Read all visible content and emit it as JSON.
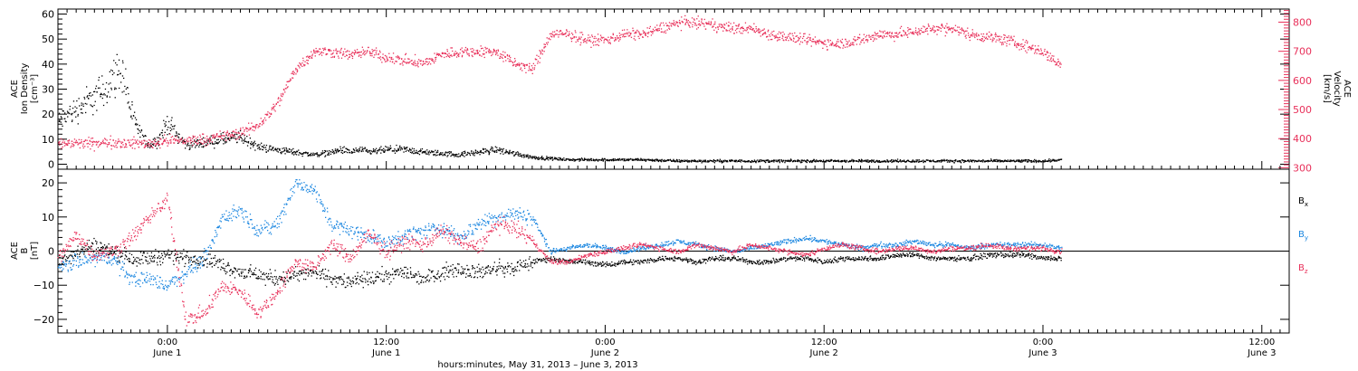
{
  "chart_data": [
    {
      "type": "scatter",
      "panel": "top",
      "left_axis": {
        "label_lines": [
          "ACE",
          "Ion Density",
          "[cm⁻³]"
        ],
        "ylim": [
          -2,
          62
        ],
        "ticks": [
          0,
          10,
          20,
          30,
          40,
          50,
          60
        ],
        "tick_labels": [
          "0",
          "10",
          "20",
          "30",
          "40",
          "50",
          "60"
        ]
      },
      "right_axis": {
        "label_lines": [
          "ACE",
          "Velocity",
          "[km/s]"
        ],
        "ylim": [
          295,
          845
        ],
        "ticks": [
          300,
          400,
          500,
          600,
          700,
          800
        ],
        "tick_labels": [
          "300",
          "400",
          "500",
          "600",
          "700",
          "800"
        ],
        "color": "#e8305a"
      },
      "series": [
        {
          "axis": "left",
          "color": "#000000",
          "x_hours": [
            0,
            1,
            2,
            3,
            4,
            5,
            6,
            7,
            8,
            9,
            10,
            11,
            12,
            13,
            14,
            16,
            18,
            20,
            22,
            24,
            26,
            28,
            30,
            31,
            32,
            33,
            34,
            36,
            38,
            40,
            44,
            48,
            52,
            56,
            60,
            64,
            68,
            72,
            76,
            80,
            84,
            88,
            92,
            96,
            100,
            104,
            108,
            110
          ],
          "values": [
            17,
            20,
            22,
            25,
            27,
            30,
            35,
            38,
            20,
            12,
            8,
            10,
            17,
            12,
            8,
            9,
            10,
            11,
            7,
            6,
            5,
            4,
            5,
            6,
            5,
            6,
            5,
            6,
            6,
            5,
            4,
            6,
            3,
            2,
            2,
            2,
            1.5,
            1.5,
            1.5,
            1.5,
            1.5,
            1.5,
            1.5,
            1.5,
            1.5,
            1.5,
            1.5,
            2
          ]
        },
        {
          "axis": "right",
          "color": "#e8305a",
          "x_hours": [
            0,
            2,
            4,
            6,
            8,
            10,
            12,
            14,
            16,
            18,
            20,
            22,
            24,
            26,
            28,
            30,
            32,
            34,
            36,
            38,
            40,
            42,
            44,
            46,
            48,
            50,
            52,
            54,
            56,
            58,
            60,
            62,
            64,
            66,
            68,
            70,
            72,
            74,
            76,
            78,
            80,
            82,
            84,
            86,
            88,
            90,
            92,
            94,
            96,
            98,
            100,
            102,
            104,
            106,
            108,
            110
          ],
          "values": [
            385,
            385,
            385,
            390,
            385,
            385,
            395,
            395,
            400,
            410,
            420,
            450,
            520,
            640,
            700,
            700,
            690,
            700,
            680,
            670,
            660,
            690,
            700,
            700,
            700,
            660,
            640,
            760,
            760,
            740,
            740,
            760,
            760,
            780,
            800,
            800,
            790,
            780,
            780,
            760,
            750,
            740,
            730,
            730,
            740,
            760,
            760,
            770,
            780,
            780,
            760,
            750,
            740,
            720,
            700,
            650
          ]
        }
      ]
    },
    {
      "type": "scatter",
      "panel": "bottom",
      "left_axis": {
        "label_lines": [
          "ACE",
          "B",
          "[nT]"
        ],
        "ylim": [
          -24,
          24
        ],
        "ticks": [
          -20,
          -10,
          0,
          10,
          20
        ],
        "tick_labels": [
          "−20",
          "−10",
          "0",
          "10",
          "20"
        ]
      },
      "x_axis": {
        "xlim_hours": [
          0,
          135
        ],
        "major_ticks_hours": [
          12,
          36,
          60,
          84,
          108,
          132
        ],
        "minor_tick_step_hours": 1,
        "tick_labels": [
          {
            "time": "0:00",
            "day": "June 1"
          },
          {
            "time": "12:00",
            "day": "June 1"
          },
          {
            "time": "0:00",
            "day": "June 2"
          },
          {
            "time": "12:00",
            "day": "June 2"
          },
          {
            "time": "0:00",
            "day": "June 3"
          },
          {
            "time": "12:00",
            "day": "June 3"
          }
        ],
        "label": "hours:minutes, May 31, 2013 – June  3, 2013"
      },
      "zero_line": 0,
      "series": [
        {
          "name": "Bx",
          "label_main": "B",
          "label_sub": "x",
          "color": "#000000",
          "x_hours": [
            0,
            2,
            4,
            6,
            8,
            10,
            12,
            14,
            16,
            18,
            20,
            22,
            24,
            26,
            28,
            30,
            32,
            34,
            36,
            38,
            40,
            42,
            44,
            46,
            48,
            50,
            52,
            54,
            56,
            58,
            60,
            62,
            64,
            66,
            68,
            70,
            72,
            74,
            76,
            78,
            80,
            82,
            84,
            86,
            88,
            90,
            92,
            94,
            96,
            98,
            100,
            102,
            104,
            106,
            108,
            110
          ],
          "values": [
            -3,
            0,
            2,
            0,
            -2,
            -2,
            -1,
            -2,
            -2,
            -4,
            -6,
            -7,
            -8,
            -7,
            -6,
            -8,
            -9,
            -8,
            -7,
            -6,
            -8,
            -6,
            -5,
            -6,
            -5,
            -5,
            -3,
            -2,
            -3,
            -3,
            -4,
            -3,
            -3,
            -2,
            -2,
            -3,
            -2,
            -2,
            -3,
            -3,
            -2,
            -2,
            -3,
            -2,
            -2,
            -2,
            -1,
            -1,
            -2,
            -2,
            -2,
            -1,
            -1,
            -1,
            -2,
            -2
          ]
        },
        {
          "name": "By",
          "label_main": "B",
          "label_sub": "y",
          "color": "#1a86e0",
          "x_hours": [
            0,
            2,
            4,
            6,
            8,
            10,
            12,
            14,
            16,
            18,
            20,
            22,
            24,
            26,
            28,
            30,
            32,
            34,
            36,
            38,
            40,
            42,
            44,
            46,
            48,
            50,
            52,
            54,
            56,
            58,
            60,
            62,
            64,
            66,
            68,
            70,
            72,
            74,
            76,
            78,
            80,
            82,
            84,
            86,
            88,
            90,
            92,
            94,
            96,
            98,
            100,
            102,
            104,
            106,
            108,
            110
          ],
          "values": [
            -5,
            -3,
            -2,
            -2,
            -8,
            -8,
            -10,
            -6,
            -2,
            10,
            12,
            6,
            8,
            20,
            18,
            8,
            6,
            5,
            2,
            5,
            6,
            7,
            4,
            8,
            10,
            11,
            10,
            0,
            1,
            2,
            1,
            0,
            1,
            2,
            3,
            2,
            1,
            0,
            1,
            2,
            3,
            4,
            3,
            2,
            1,
            2,
            2,
            3,
            2,
            2,
            1,
            2,
            2,
            2,
            2,
            1
          ]
        },
        {
          "name": "Bz",
          "label_main": "B",
          "label_sub": "z",
          "color": "#e8305a",
          "x_hours": [
            0,
            2,
            4,
            6,
            8,
            10,
            12,
            14,
            16,
            18,
            20,
            22,
            24,
            26,
            28,
            30,
            32,
            34,
            36,
            38,
            40,
            42,
            44,
            46,
            48,
            50,
            52,
            54,
            56,
            58,
            60,
            62,
            64,
            66,
            68,
            70,
            72,
            74,
            76,
            78,
            80,
            82,
            84,
            86,
            88,
            90,
            92,
            94,
            96,
            98,
            100,
            102,
            104,
            106,
            108,
            110
          ],
          "values": [
            -2,
            5,
            -1,
            0,
            4,
            10,
            15,
            -20,
            -18,
            -10,
            -12,
            -18,
            -12,
            -3,
            -5,
            2,
            -2,
            5,
            0,
            3,
            2,
            6,
            3,
            1,
            8,
            7,
            3,
            -3,
            -3,
            -1,
            0,
            1,
            2,
            1,
            0,
            2,
            1,
            0,
            2,
            1,
            0,
            -1,
            1,
            2,
            1,
            0,
            1,
            1,
            0,
            1,
            1,
            2,
            1,
            1,
            1,
            0
          ]
        }
      ]
    }
  ]
}
